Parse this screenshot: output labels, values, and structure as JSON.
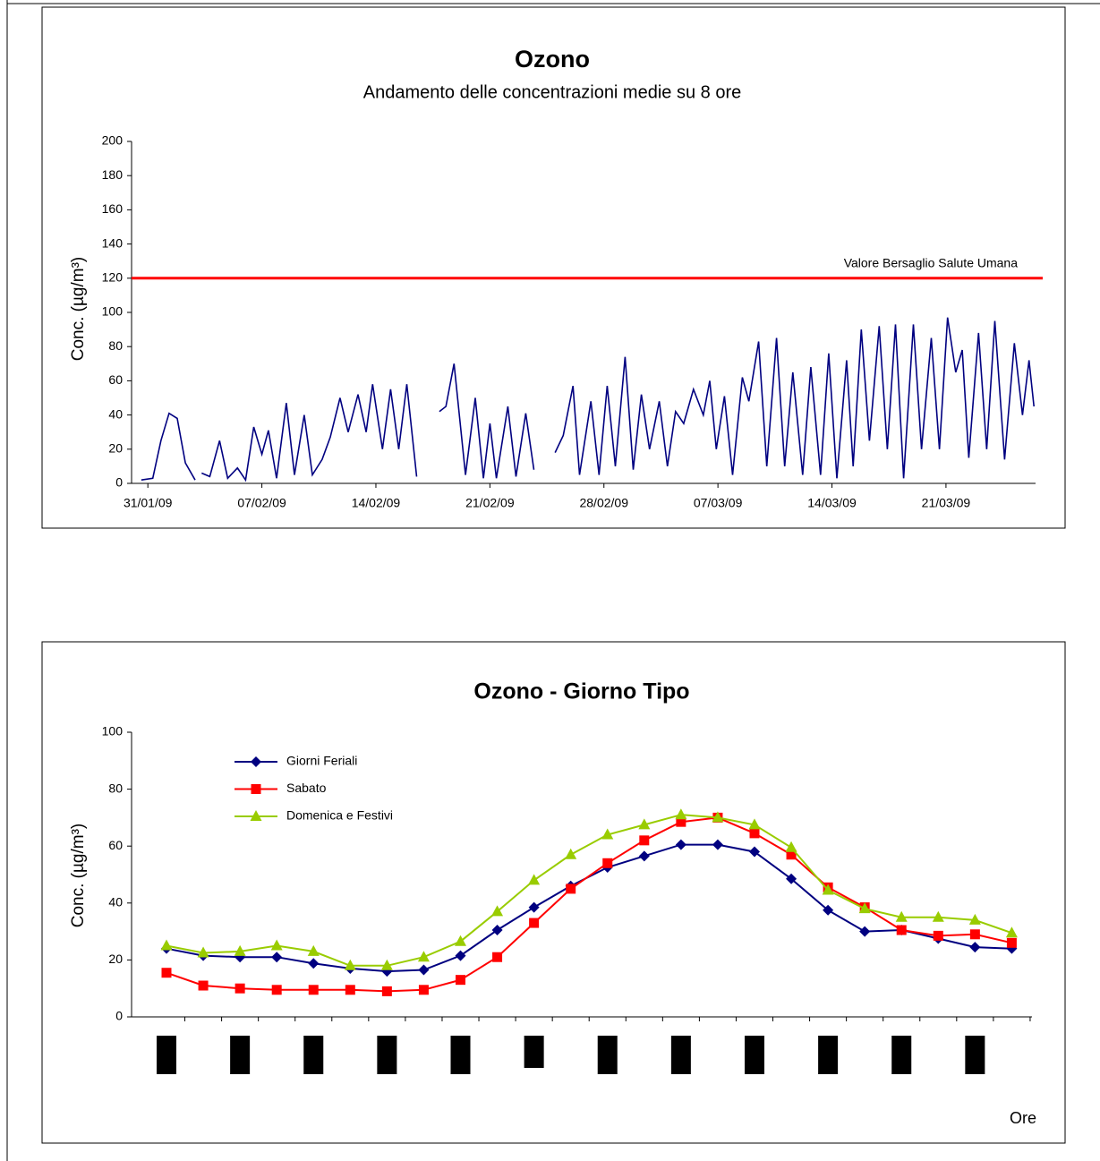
{
  "chart_data": [
    {
      "type": "line",
      "title": "Ozono",
      "subtitle": "Andamento delle concentrazioni medie su 8 ore",
      "y_label": "Conc. (µg/m³)",
      "x": [
        -0.4,
        0.3,
        0.8,
        1.3,
        1.8,
        2.3,
        2.9,
        3.1,
        3.3,
        3.8,
        4.4,
        4.9,
        5.5,
        6.0,
        6.5,
        7.0,
        7.4,
        7.9,
        8.5,
        9.0,
        9.6,
        10.1,
        10.7,
        11.2,
        11.8,
        12.3,
        12.9,
        13.4,
        13.8,
        14.4,
        14.9,
        15.4,
        15.9,
        16.5,
        17.2,
        17.9,
        18.3,
        18.8,
        19.5,
        20.1,
        20.6,
        21.0,
        21.4,
        22.1,
        22.6,
        23.2,
        23.7,
        24.3,
        25.0,
        25.5,
        26.1,
        26.5,
        27.2,
        27.7,
        28.2,
        28.7,
        29.3,
        29.8,
        30.3,
        30.8,
        31.4,
        31.9,
        32.4,
        32.9,
        33.5,
        34.1,
        34.5,
        34.9,
        35.4,
        35.9,
        36.5,
        36.9,
        37.5,
        38.0,
        38.6,
        39.1,
        39.6,
        40.2,
        40.7,
        41.3,
        41.8,
        42.3,
        42.9,
        43.3,
        43.8,
        44.3,
        44.9,
        45.4,
        45.9,
        46.4,
        47.0,
        47.5,
        48.1,
        48.6,
        49.1,
        49.6,
        50.0,
        50.4,
        51.0,
        51.5,
        52.0,
        52.6,
        53.2,
        53.7,
        54.1,
        54.4
      ],
      "series": [
        {
          "color": "#000080",
          "values": [
            2,
            3,
            25,
            41,
            38,
            12,
            2,
            null,
            6,
            4,
            25,
            3,
            9,
            2,
            33,
            17,
            31,
            3,
            47,
            5,
            40,
            5,
            14,
            27,
            50,
            30,
            52,
            30,
            58,
            20,
            55,
            20,
            58,
            4,
            null,
            42,
            45,
            70,
            5,
            50,
            3,
            35,
            3,
            45,
            4,
            41,
            8,
            null,
            18,
            28,
            57,
            5,
            48,
            5,
            57,
            10,
            74,
            8,
            52,
            20,
            48,
            10,
            42,
            35,
            55,
            40,
            60,
            20,
            51,
            5,
            62,
            48,
            83,
            10,
            85,
            10,
            65,
            5,
            68,
            5,
            76,
            3,
            72,
            10,
            90,
            25,
            92,
            20,
            93,
            3,
            93,
            20,
            85,
            20,
            97,
            65,
            78,
            15,
            88,
            20,
            95,
            14,
            82,
            40,
            72,
            45
          ]
        }
      ],
      "reference_line": {
        "value": 120,
        "label": "Valore Bersaglio Salute Umana",
        "color": "#ff0000"
      },
      "xlim": [
        -1,
        54.5
      ],
      "xticks": [
        {
          "value": 0,
          "label": "31/01/09"
        },
        {
          "value": 7,
          "label": "07/02/09"
        },
        {
          "value": 14,
          "label": "14/02/09"
        },
        {
          "value": 21,
          "label": "21/02/09"
        },
        {
          "value": 28,
          "label": "28/02/09"
        },
        {
          "value": 35,
          "label": "07/03/09"
        },
        {
          "value": 42,
          "label": "14/03/09"
        },
        {
          "value": 49,
          "label": "21/03/09"
        }
      ],
      "ylim": [
        0,
        200
      ],
      "yticks": [
        0,
        20,
        40,
        60,
        80,
        100,
        120,
        140,
        160,
        180,
        200
      ]
    },
    {
      "type": "line",
      "title": "Ozono -  Giorno Tipo",
      "y_label": "Conc. (µg/m³)",
      "x_label": "Ore",
      "categories": [
        null,
        null,
        null,
        null,
        null,
        null,
        null,
        null,
        null,
        null,
        null,
        null,
        null,
        null,
        null,
        null,
        null,
        null,
        null,
        null,
        null,
        null,
        null,
        null
      ],
      "series": [
        {
          "name": "Giorni Feriali",
          "color": "#000080",
          "marker": "diamond",
          "values": [
            24,
            21.5,
            21,
            21,
            18.8,
            17,
            16,
            16.5,
            21.5,
            30.5,
            38.5,
            46,
            52.5,
            56.5,
            60.5,
            60.5,
            58,
            48.5,
            37.5,
            30,
            30.5,
            27.5,
            24.5,
            24
          ]
        },
        {
          "name": "Sabato",
          "color": "#ff0000",
          "marker": "square",
          "values": [
            15.5,
            11,
            10,
            9.5,
            9.5,
            9.5,
            9,
            9.5,
            13,
            21,
            33,
            45,
            54,
            62,
            68.5,
            70,
            64.5,
            57,
            45.5,
            38.5,
            30.5,
            28.5,
            29,
            26
          ]
        },
        {
          "name": "Domenica e Festivi",
          "color": "#99cc00",
          "marker": "triangle",
          "values": [
            25,
            22.5,
            23,
            25,
            23,
            18,
            18,
            21,
            26.5,
            37,
            48,
            57,
            64,
            67.5,
            71,
            70,
            67.5,
            59.5,
            44.5,
            38,
            35,
            35,
            34,
            29.5
          ]
        }
      ],
      "ylim": [
        0,
        100
      ],
      "yticks": [
        0,
        20,
        40,
        60,
        80,
        100
      ],
      "legend": "top-left"
    }
  ]
}
